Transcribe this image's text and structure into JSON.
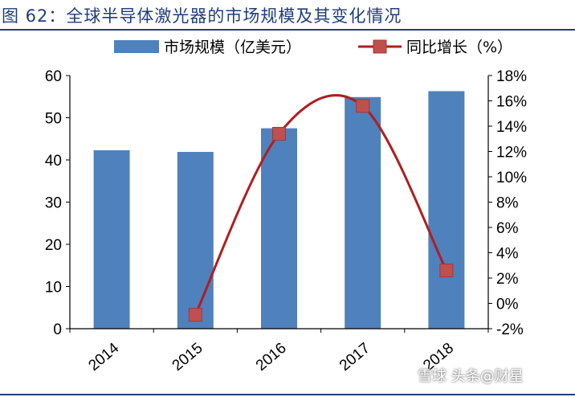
{
  "title": "图 62：全球半导体激光器的市场规模及其变化情况",
  "watermark": "雪球 头条@财星",
  "chart_data": {
    "type": "bar",
    "categories": [
      "2014",
      "2015",
      "2016",
      "2017",
      "2018"
    ],
    "series": [
      {
        "name": "市场规模（亿美元）",
        "type": "bar",
        "axis": "left",
        "color": "#4f81bd",
        "values": [
          42.3,
          41.9,
          47.5,
          54.9,
          56.3
        ]
      },
      {
        "name": "同比增长（%）",
        "type": "line",
        "axis": "right",
        "color": "#c0504d",
        "line_color": "#b01e1e",
        "values": [
          null,
          -0.9,
          13.4,
          15.6,
          2.6
        ]
      }
    ],
    "y_left": {
      "min": 0,
      "max": 60,
      "step": 10,
      "ticks": [
        "0",
        "10",
        "20",
        "30",
        "40",
        "50",
        "60"
      ]
    },
    "y_right": {
      "min": -2,
      "max": 18,
      "step": 2,
      "ticks": [
        "-2%",
        "0%",
        "2%",
        "4%",
        "6%",
        "8%",
        "10%",
        "12%",
        "14%",
        "16%",
        "18%"
      ]
    },
    "xlabel": "",
    "ylabel": "",
    "grid": false,
    "legend": "top"
  }
}
